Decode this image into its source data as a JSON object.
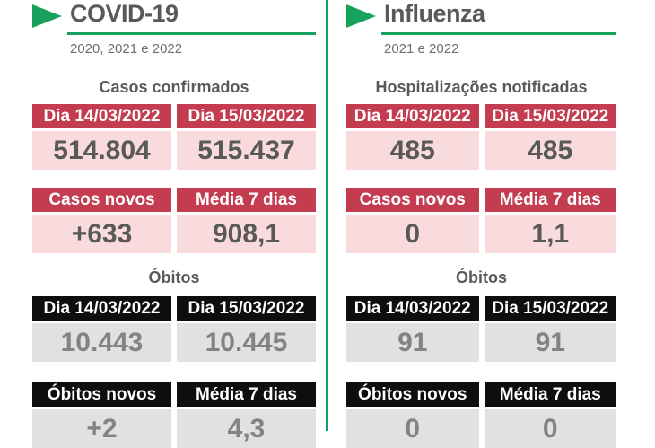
{
  "theme": {
    "accent_green": "#17a15d",
    "header_red": "#c43c50",
    "cell_pink": "#fadbdd",
    "header_black": "#0e0e0e",
    "cell_gray": "#e1e1e1",
    "text_dark_gray": "#58595b"
  },
  "panels": [
    {
      "title": "COVID-19",
      "subtitle": "2020, 2021 e 2022",
      "sections": [
        {
          "heading": "Casos confirmados",
          "tables": [
            {
              "headers": [
                "Dia 14/03/2022",
                "Dia 15/03/2022"
              ],
              "values": [
                "514.804",
                "515.437"
              ]
            },
            {
              "headers": [
                "Casos novos",
                "Média 7 dias"
              ],
              "values": [
                "+633",
                "908,1"
              ]
            }
          ]
        },
        {
          "heading": "Óbitos",
          "tables": [
            {
              "headers": [
                "Dia 14/03/2022",
                "Dia 15/03/2022"
              ],
              "values": [
                "10.443",
                "10.445"
              ]
            },
            {
              "headers": [
                "Óbitos novos",
                "Média 7 dias"
              ],
              "values": [
                "+2",
                "4,3"
              ]
            }
          ]
        }
      ]
    },
    {
      "title": "Influenza",
      "subtitle": "2021 e 2022",
      "sections": [
        {
          "heading": "Hospitalizações notificadas",
          "tables": [
            {
              "headers": [
                "Dia 14/03/2022",
                "Dia 15/03/2022"
              ],
              "values": [
                "485",
                "485"
              ]
            },
            {
              "headers": [
                "Casos novos",
                "Média 7 dias"
              ],
              "values": [
                "0",
                "1,1"
              ]
            }
          ]
        },
        {
          "heading": "Óbitos",
          "tables": [
            {
              "headers": [
                "Dia 14/03/2022",
                "Dia 15/03/2022"
              ],
              "values": [
                "91",
                "91"
              ]
            },
            {
              "headers": [
                "Óbitos novos",
                "Média 7 dias"
              ],
              "values": [
                "0",
                "0"
              ]
            }
          ]
        }
      ]
    }
  ],
  "chart_data": [
    {
      "type": "table",
      "title": "COVID-19 — Casos confirmados",
      "columns": [
        "Dia 14/03/2022",
        "Dia 15/03/2022"
      ],
      "rows": [
        [
          514804,
          515437
        ]
      ]
    },
    {
      "type": "table",
      "title": "COVID-19 — Casos novos / Média 7 dias",
      "columns": [
        "Casos novos",
        "Média 7 dias"
      ],
      "rows": [
        [
          633,
          908.1
        ]
      ]
    },
    {
      "type": "table",
      "title": "COVID-19 — Óbitos acumulados",
      "columns": [
        "Dia 14/03/2022",
        "Dia 15/03/2022"
      ],
      "rows": [
        [
          10443,
          10445
        ]
      ]
    },
    {
      "type": "table",
      "title": "COVID-19 — Óbitos novos / Média 7 dias",
      "columns": [
        "Óbitos novos",
        "Média 7 dias"
      ],
      "rows": [
        [
          2,
          4.3
        ]
      ]
    },
    {
      "type": "table",
      "title": "Influenza — Hospitalizações notificadas",
      "columns": [
        "Dia 14/03/2022",
        "Dia 15/03/2022"
      ],
      "rows": [
        [
          485,
          485
        ]
      ]
    },
    {
      "type": "table",
      "title": "Influenza — Casos novos / Média 7 dias",
      "columns": [
        "Casos novos",
        "Média 7 dias"
      ],
      "rows": [
        [
          0,
          1.1
        ]
      ]
    },
    {
      "type": "table",
      "title": "Influenza — Óbitos acumulados",
      "columns": [
        "Dia 14/03/2022",
        "Dia 15/03/2022"
      ],
      "rows": [
        [
          91,
          91
        ]
      ]
    },
    {
      "type": "table",
      "title": "Influenza — Óbitos novos / Média 7 dias",
      "columns": [
        "Óbitos novos",
        "Média 7 dias"
      ],
      "rows": [
        [
          0,
          0
        ]
      ]
    }
  ]
}
